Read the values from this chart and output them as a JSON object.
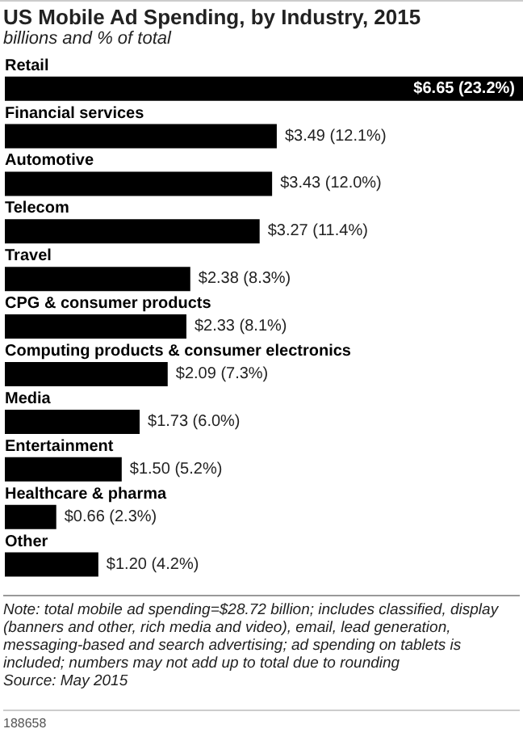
{
  "chart_data": {
    "type": "bar",
    "orientation": "horizontal",
    "title": "US Mobile Ad Spending, by Industry, 2015",
    "subtitle": "billions and % of total",
    "categories": [
      "Retail",
      "Financial services",
      "Automotive",
      "Telecom",
      "Travel",
      "CPG & consumer products",
      "Computing products & consumer electronics",
      "Media",
      "Entertainment",
      "Healthcare & pharma",
      "Other"
    ],
    "values": [
      6.65,
      3.49,
      3.43,
      3.27,
      2.38,
      2.33,
      2.09,
      1.73,
      1.5,
      0.66,
      1.2
    ],
    "value_labels": [
      "$6.65 (23.2%)",
      "$3.49 (12.1%)",
      "$3.43 (12.0%)",
      "$3.27 (11.4%)",
      "$2.38 (8.3%)",
      "$2.33 (8.1%)",
      "$2.09 (7.3%)",
      "$1.73 (6.0%)",
      "$1.50 (5.2%)",
      "$0.66 (2.3%)",
      "$1.20 (4.2%)"
    ],
    "color": "#000000",
    "annotations": [
      "Note: total mobile ad spending=$28.72 billion; includes classified, display (banners and other, rich media and video), email, lead generation, messaging-based and search advertising; ad spending on tablets is included; numbers may not add up to total due to rounding",
      "Source: May 2015",
      "188658"
    ]
  }
}
